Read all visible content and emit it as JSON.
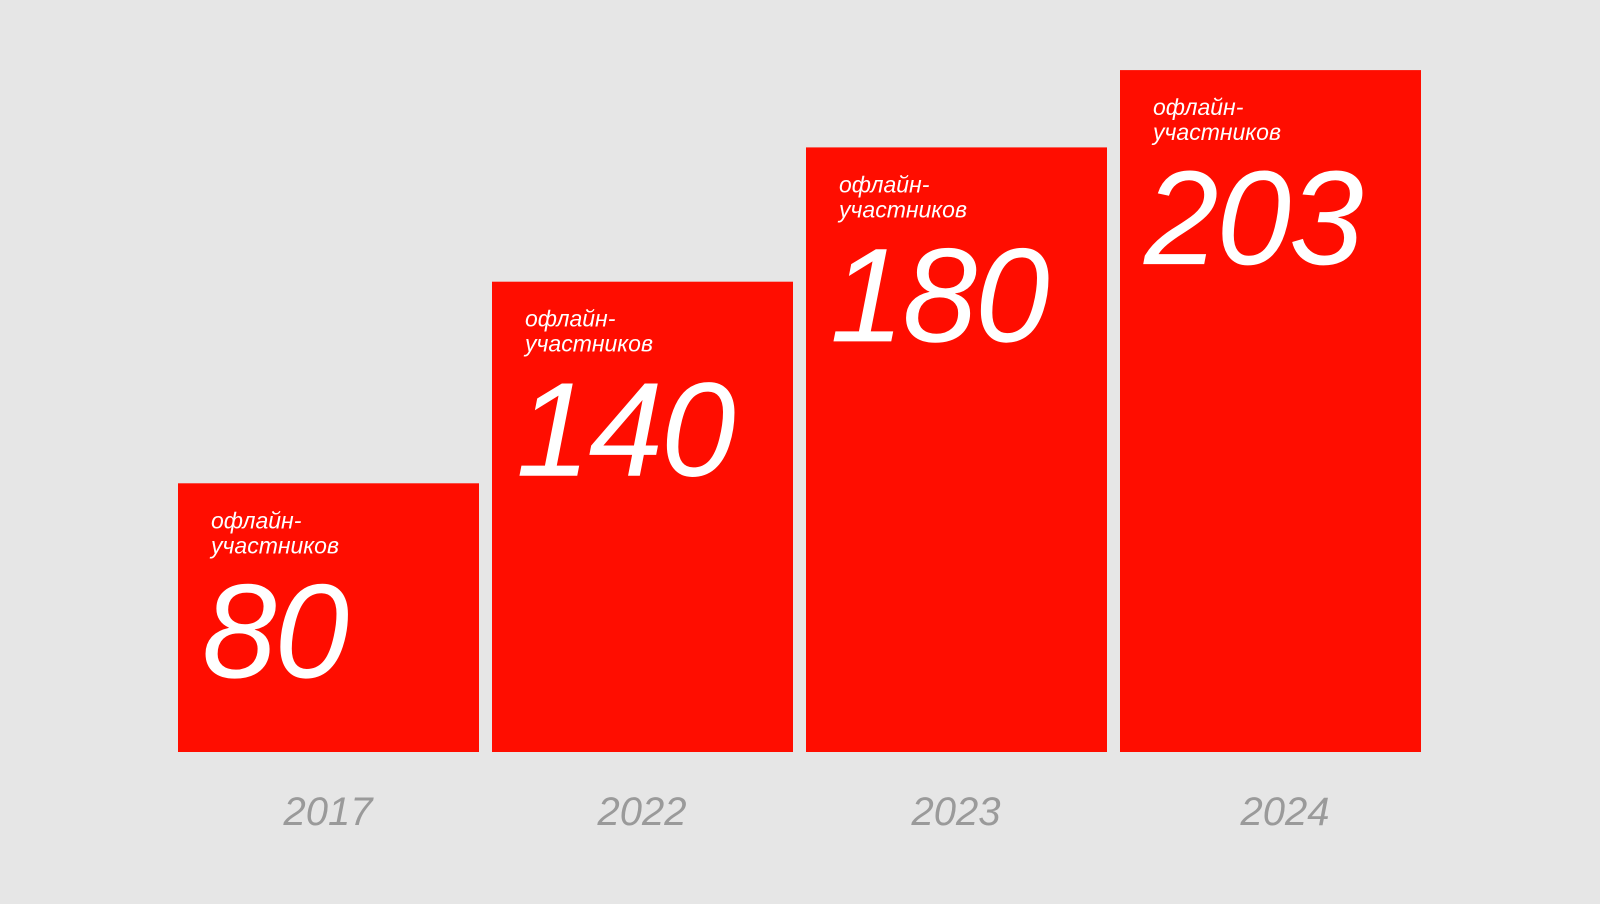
{
  "colors": {
    "background": "#e6e6e6",
    "bar": "#ff0d00",
    "bar_text": "#ffffff",
    "year_text": "#9a9a9a"
  },
  "chart_data": {
    "type": "bar",
    "categories": [
      "2017",
      "2022",
      "2023",
      "2024"
    ],
    "values": [
      80,
      140,
      180,
      203
    ],
    "value_labels": [
      "80",
      "140",
      "180",
      "203"
    ],
    "bar_caption_lines": [
      "офлайн-",
      "участников"
    ],
    "title": "",
    "xlabel": "",
    "ylabel": "",
    "grid": false,
    "legend": "none"
  }
}
